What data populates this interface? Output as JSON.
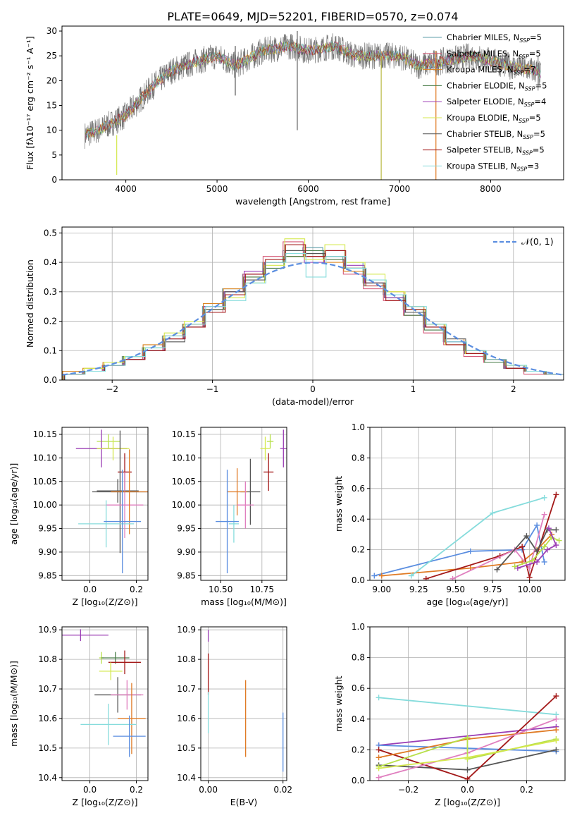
{
  "title": "PLATE=0649, MJD=52201, FIBERID=0570, z=0.074",
  "models": [
    {
      "name": "Chabrier MILES",
      "n": "5",
      "color": "#5e9da8"
    },
    {
      "name": "Salpeter MILES",
      "n": "5",
      "color": "#d55a78"
    },
    {
      "name": "Kroupa MILES",
      "n": "7",
      "color": "#d9831f"
    },
    {
      "name": "Chabrier ELODIE",
      "n": "5",
      "color": "#4a7d4a"
    },
    {
      "name": "Salpeter ELODIE",
      "n": "4",
      "color": "#9b3fb5"
    },
    {
      "name": "Kroupa ELODIE",
      "n": "5",
      "color": "#d4e84c"
    },
    {
      "name": "Chabrier STELIB",
      "n": "5",
      "color": "#555555"
    },
    {
      "name": "Salpeter STELIB",
      "n": "5",
      "color": "#a31818"
    },
    {
      "name": "Kroupa STELIB",
      "n": "3",
      "color": "#86dcdc"
    }
  ],
  "extra_colors": {
    "blue": "#5b8ee0",
    "pink": "#e07fbf",
    "orange": "#e07b25",
    "green": "#b8e04a"
  },
  "chart_data": [
    {
      "type": "line",
      "title": "PLATE=0649, MJD=52201, FIBERID=0570, z=0.074",
      "xlabel": "wavelength [Angstrom, rest frame]",
      "ylabel": "Flux [fλ10⁻¹⁷ erg cm⁻² s⁻¹ A⁻¹]",
      "xlim": [
        3300,
        8800
      ],
      "ylim": [
        0,
        31
      ],
      "xticks": [
        4000,
        5000,
        6000,
        7000,
        8000
      ],
      "yticks": [
        0,
        5,
        10,
        15,
        20,
        25,
        30
      ],
      "legend_loc": "right",
      "spectrum_x": [
        3550,
        3700,
        3900,
        4000,
        4100,
        4300,
        4500,
        4800,
        5000,
        5200,
        5500,
        5800,
        6000,
        6300,
        6500,
        6800,
        7000,
        7200,
        7500,
        7800,
        8000,
        8200,
        8500,
        8550
      ],
      "spectrum_y": [
        9,
        10,
        12,
        13,
        15,
        19,
        22,
        24,
        25,
        23,
        26,
        27,
        26,
        27,
        25,
        25,
        25,
        23,
        24,
        25,
        24,
        23,
        22,
        21
      ]
    },
    {
      "type": "histogram",
      "xlabel": "(data-model)/error",
      "ylabel": "Normed distribution",
      "xlim": [
        -2.5,
        2.5
      ],
      "ylim": [
        0,
        0.52
      ],
      "xticks": [
        -2,
        -1,
        0,
        1,
        2
      ],
      "yticks": [
        0.0,
        0.1,
        0.2,
        0.3,
        0.4,
        0.5
      ],
      "legend": "𝒩(0, 1)",
      "reference_curve": "normal(0,1)",
      "bin_centers": [
        -2.4,
        -2.2,
        -2.0,
        -1.8,
        -1.6,
        -1.4,
        -1.2,
        -1.0,
        -0.8,
        -0.6,
        -0.4,
        -0.2,
        0.0,
        0.2,
        0.4,
        0.6,
        0.8,
        1.0,
        1.2,
        1.4,
        1.6,
        1.8,
        2.0,
        2.2,
        2.4
      ],
      "series_values": [
        [
          0.02,
          0.03,
          0.05,
          0.08,
          0.11,
          0.15,
          0.19,
          0.25,
          0.31,
          0.36,
          0.4,
          0.44,
          0.45,
          0.42,
          0.4,
          0.33,
          0.29,
          0.24,
          0.18,
          0.13,
          0.1,
          0.07,
          0.04,
          0.03,
          0.02
        ],
        [
          0.02,
          0.03,
          0.05,
          0.07,
          0.1,
          0.14,
          0.18,
          0.23,
          0.3,
          0.36,
          0.42,
          0.47,
          0.42,
          0.41,
          0.36,
          0.31,
          0.27,
          0.22,
          0.16,
          0.12,
          0.08,
          0.06,
          0.04,
          0.02,
          0.02
        ],
        [
          0.03,
          0.04,
          0.06,
          0.08,
          0.12,
          0.15,
          0.19,
          0.26,
          0.31,
          0.35,
          0.4,
          0.42,
          0.43,
          0.4,
          0.37,
          0.33,
          0.3,
          0.25,
          0.19,
          0.14,
          0.1,
          0.07,
          0.05,
          0.03,
          0.02
        ],
        [
          0.02,
          0.03,
          0.05,
          0.08,
          0.11,
          0.14,
          0.18,
          0.24,
          0.3,
          0.35,
          0.38,
          0.42,
          0.44,
          0.41,
          0.38,
          0.32,
          0.28,
          0.22,
          0.17,
          0.13,
          0.09,
          0.06,
          0.04,
          0.03,
          0.02
        ],
        [
          0.02,
          0.03,
          0.05,
          0.07,
          0.1,
          0.14,
          0.18,
          0.25,
          0.3,
          0.37,
          0.4,
          0.46,
          0.4,
          0.44,
          0.39,
          0.33,
          0.28,
          0.23,
          0.18,
          0.13,
          0.09,
          0.07,
          0.04,
          0.03,
          0.02
        ],
        [
          0.02,
          0.04,
          0.06,
          0.08,
          0.11,
          0.16,
          0.2,
          0.24,
          0.28,
          0.33,
          0.39,
          0.48,
          0.41,
          0.46,
          0.4,
          0.36,
          0.3,
          0.24,
          0.19,
          0.12,
          0.09,
          0.07,
          0.05,
          0.03,
          0.02
        ],
        [
          0.02,
          0.03,
          0.05,
          0.07,
          0.1,
          0.13,
          0.18,
          0.24,
          0.3,
          0.34,
          0.4,
          0.44,
          0.43,
          0.42,
          0.38,
          0.33,
          0.29,
          0.23,
          0.18,
          0.14,
          0.1,
          0.07,
          0.04,
          0.03,
          0.02
        ],
        [
          0.02,
          0.03,
          0.05,
          0.07,
          0.1,
          0.14,
          0.18,
          0.23,
          0.29,
          0.36,
          0.41,
          0.46,
          0.42,
          0.44,
          0.38,
          0.32,
          0.27,
          0.24,
          0.18,
          0.12,
          0.09,
          0.07,
          0.04,
          0.03,
          0.02
        ],
        [
          0.02,
          0.03,
          0.05,
          0.08,
          0.11,
          0.15,
          0.19,
          0.25,
          0.27,
          0.33,
          0.4,
          0.43,
          0.35,
          0.42,
          0.38,
          0.34,
          0.29,
          0.25,
          0.19,
          0.13,
          0.1,
          0.07,
          0.05,
          0.03,
          0.02
        ]
      ]
    },
    {
      "type": "scatter-errorbar",
      "xlabel": "Z [log₁₀(Z/Z⊙)]",
      "ylabel": "age  [log₁₀(age/yr)]",
      "xlim": [
        -0.12,
        0.25
      ],
      "ylim": [
        9.84,
        10.165
      ],
      "xticks": [
        0.0,
        0.2
      ],
      "yticks": [
        9.85,
        9.9,
        9.95,
        10.0,
        10.05,
        10.1,
        10.15
      ],
      "points": [
        {
          "x": 0.08,
          "y": 10.135,
          "xerr": 0.05,
          "yerr": 0.015
        },
        {
          "x": 0.05,
          "y": 10.12,
          "xerr": 0.11,
          "yerr": 0.04
        },
        {
          "x": 0.1,
          "y": 10.12,
          "xerr": 0.07,
          "yerr": 0.025
        },
        {
          "x": 0.15,
          "y": 10.07,
          "xerr": 0.03,
          "yerr": 0.04
        },
        {
          "x": 0.12,
          "y": 10.03,
          "xerr": 0.09,
          "yerr": 0.025
        },
        {
          "x": 0.13,
          "y": 10.028,
          "xerr": 0.12,
          "yerr": 0.13
        },
        {
          "x": 0.15,
          "y": 10.0,
          "xerr": 0.08,
          "yerr": 0.07
        },
        {
          "x": 0.17,
          "y": 10.028,
          "xerr": 0.08,
          "yerr": 0.09
        },
        {
          "x": 0.07,
          "y": 9.96,
          "xerr": 0.12,
          "yerr": 0.05
        },
        {
          "x": 0.14,
          "y": 9.965,
          "xerr": 0.08,
          "yerr": 0.11
        }
      ]
    },
    {
      "type": "scatter-errorbar",
      "xlabel": "mass [log₁₀(M/M⊙)]",
      "ylabel": "",
      "xlim": [
        10.38,
        10.9
      ],
      "ylim": [
        9.84,
        10.165
      ],
      "xticks": [
        10.5,
        10.75
      ],
      "yticks": [
        9.85,
        9.9,
        9.95,
        10.0,
        10.05,
        10.1,
        10.15
      ],
      "points": [
        {
          "x": 10.88,
          "y": 10.12,
          "xerr": 0.02,
          "yerr": 0.04
        },
        {
          "x": 10.8,
          "y": 10.135,
          "xerr": 0.02,
          "yerr": 0.015
        },
        {
          "x": 10.77,
          "y": 10.12,
          "xerr": 0.03,
          "yerr": 0.025
        },
        {
          "x": 10.79,
          "y": 10.07,
          "xerr": 0.03,
          "yerr": 0.04
        },
        {
          "x": 10.68,
          "y": 10.028,
          "xerr": 0.06,
          "yerr": 0.07
        },
        {
          "x": 10.6,
          "y": 10.028,
          "xerr": 0.06,
          "yerr": 0.05
        },
        {
          "x": 10.65,
          "y": 10.0,
          "xerr": 0.05,
          "yerr": 0.05
        },
        {
          "x": 10.58,
          "y": 9.96,
          "xerr": 0.03,
          "yerr": 0.04
        },
        {
          "x": 10.54,
          "y": 9.965,
          "xerr": 0.07,
          "yerr": 0.11
        }
      ]
    },
    {
      "type": "line",
      "xlabel": "age  [log₁₀(age/yr)]",
      "ylabel": "mass weight",
      "xlim": [
        8.92,
        10.24
      ],
      "ylim": [
        0,
        1.0
      ],
      "xticks": [
        9.0,
        9.25,
        9.5,
        9.75,
        10.0
      ],
      "yticks": [
        0.0,
        0.2,
        0.4,
        0.6,
        0.8,
        1.0
      ],
      "series": [
        {
          "values": [
            [
              8.95,
              0.03
            ],
            [
              9.6,
              0.19
            ],
            [
              9.95,
              0.2
            ],
            [
              10.05,
              0.36
            ],
            [
              10.1,
              0.12
            ]
          ]
        },
        {
          "values": [
            [
              9.0,
              0.03
            ],
            [
              9.6,
              0.08
            ],
            [
              9.95,
              0.12
            ],
            [
              10.05,
              0.2
            ],
            [
              10.15,
              0.3
            ]
          ]
        },
        {
          "values": [
            [
              9.2,
              0.03
            ],
            [
              9.75,
              0.44
            ],
            [
              10.1,
              0.54
            ]
          ]
        },
        {
          "values": [
            [
              9.3,
              0.01
            ],
            [
              9.8,
              0.16
            ],
            [
              9.95,
              0.22
            ],
            [
              10.0,
              0.02
            ],
            [
              10.18,
              0.56
            ]
          ]
        },
        {
          "values": [
            [
              9.48,
              0.01
            ],
            [
              9.9,
              0.2
            ],
            [
              10.0,
              0.08
            ],
            [
              10.1,
              0.43
            ]
          ]
        },
        {
          "values": [
            [
              9.78,
              0.07
            ],
            [
              9.98,
              0.29
            ],
            [
              10.05,
              0.19
            ],
            [
              10.12,
              0.33
            ],
            [
              10.18,
              0.33
            ]
          ]
        },
        {
          "values": [
            [
              9.9,
              0.09
            ],
            [
              10.02,
              0.13
            ],
            [
              10.1,
              0.22
            ],
            [
              10.15,
              0.28
            ],
            [
              10.2,
              0.26
            ]
          ]
        },
        {
          "values": [
            [
              9.92,
              0.08
            ],
            [
              10.05,
              0.12
            ],
            [
              10.12,
              0.2
            ],
            [
              10.18,
              0.23
            ],
            [
              10.13,
              0.34
            ]
          ]
        }
      ]
    },
    {
      "type": "scatter-errorbar",
      "xlabel": "Z [log₁₀(Z/Z⊙)]",
      "ylabel": "mass [log₁₀(M/M⊙)]",
      "xlim": [
        -0.12,
        0.25
      ],
      "ylim": [
        10.39,
        10.91
      ],
      "xticks": [
        0.0,
        0.2
      ],
      "yticks": [
        10.4,
        10.5,
        10.6,
        10.7,
        10.8,
        10.9
      ],
      "points": [
        {
          "x": -0.04,
          "y": 10.882,
          "xerr": 0.12,
          "yerr": 0.02
        },
        {
          "x": 0.05,
          "y": 10.805,
          "xerr": 0.01,
          "yerr": 0.02
        },
        {
          "x": 0.11,
          "y": 10.805,
          "xerr": 0.06,
          "yerr": 0.02
        },
        {
          "x": 0.15,
          "y": 10.79,
          "xerr": 0.07,
          "yerr": 0.04
        },
        {
          "x": 0.09,
          "y": 10.76,
          "xerr": 0.05,
          "yerr": 0.03
        },
        {
          "x": 0.12,
          "y": 10.68,
          "xerr": 0.1,
          "yerr": 0.06
        },
        {
          "x": 0.16,
          "y": 10.68,
          "xerr": 0.07,
          "yerr": 0.05
        },
        {
          "x": 0.18,
          "y": 10.6,
          "xerr": 0.06,
          "yerr": 0.12
        },
        {
          "x": 0.08,
          "y": 10.58,
          "xerr": 0.12,
          "yerr": 0.07
        },
        {
          "x": 0.17,
          "y": 10.54,
          "xerr": 0.07,
          "yerr": 0.07
        }
      ]
    },
    {
      "type": "scatter-errorbar",
      "xlabel": "E(B-V)",
      "ylabel": "",
      "xlim": [
        -0.002,
        0.021
      ],
      "ylim": [
        10.39,
        10.91
      ],
      "xticks": [
        0.0,
        0.02
      ],
      "yticks": [
        10.4,
        10.5,
        10.6,
        10.7,
        10.8,
        10.9
      ],
      "points": [
        {
          "x": 0.0,
          "y": 10.88,
          "xerr": 0.0,
          "yerr": 0.02
        },
        {
          "x": 0.0,
          "y": 10.75,
          "xerr": 0.0,
          "yerr": 0.07
        },
        {
          "x": 0.0,
          "y": 10.62,
          "xerr": 0.0,
          "yerr": 0.07
        },
        {
          "x": 0.01,
          "y": 10.6,
          "xerr": 0.0,
          "yerr": 0.13
        },
        {
          "x": 0.02,
          "y": 10.52,
          "xerr": 0.0,
          "yerr": 0.1
        }
      ]
    },
    {
      "type": "line",
      "xlabel": "Z [log₁₀(Z/Z⊙)]",
      "ylabel": "mass weight",
      "xlim": [
        -0.33,
        0.33
      ],
      "ylim": [
        0,
        1.0
      ],
      "xticks": [
        -0.2,
        0.0,
        0.2
      ],
      "yticks": [
        0.0,
        0.2,
        0.4,
        0.6,
        0.8,
        1.0
      ],
      "series": [
        {
          "values": [
            [
              -0.3,
              0.54
            ],
            [
              0.3,
              0.43
            ]
          ]
        },
        {
          "values": [
            [
              -0.3,
              0.23
            ],
            [
              0.3,
              0.35
            ]
          ]
        },
        {
          "values": [
            [
              -0.3,
              0.23
            ],
            [
              0.0,
              0.21
            ],
            [
              0.3,
              0.19
            ]
          ]
        },
        {
          "values": [
            [
              -0.3,
              0.1
            ],
            [
              0.0,
              0.07
            ],
            [
              0.3,
              0.2
            ]
          ]
        },
        {
          "values": [
            [
              -0.3,
              0.2
            ],
            [
              0.0,
              0.01
            ],
            [
              0.3,
              0.55
            ]
          ]
        },
        {
          "values": [
            [
              -0.3,
              0.15
            ],
            [
              0.0,
              0.27
            ],
            [
              0.3,
              0.33
            ]
          ]
        },
        {
          "values": [
            [
              -0.3,
              0.02
            ],
            [
              0.0,
              0.18
            ],
            [
              0.3,
              0.4
            ]
          ]
        },
        {
          "values": [
            [
              -0.3,
              0.09
            ],
            [
              0.0,
              0.28
            ],
            [
              0.0,
              0.14
            ],
            [
              0.3,
              0.27
            ]
          ]
        },
        {
          "values": [
            [
              -0.3,
              0.08
            ],
            [
              0.0,
              0.15
            ],
            [
              0.3,
              0.26
            ]
          ]
        }
      ]
    }
  ]
}
